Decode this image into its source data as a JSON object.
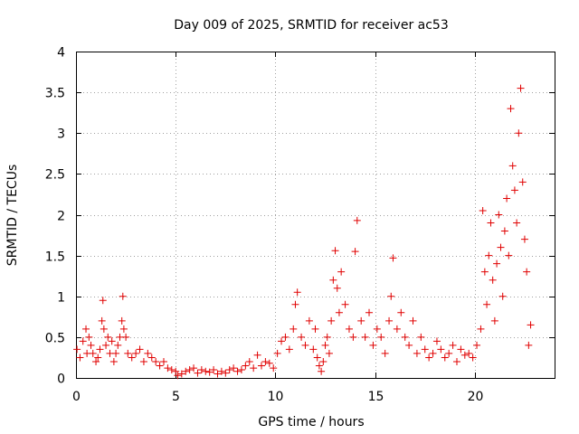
{
  "chart_data": {
    "type": "scatter",
    "title": "Day 009 of 2025, SRMTID for receiver ac53",
    "xlabel": "GPS time / hours",
    "ylabel": "SRMTID / TECUs",
    "xlim": [
      0,
      24
    ],
    "ylim": [
      0,
      4
    ],
    "xticks": [
      0,
      5,
      10,
      15,
      20
    ],
    "yticks": [
      0,
      0.5,
      1,
      1.5,
      2,
      2.5,
      3,
      3.5,
      4
    ],
    "xtick_labels": [
      "0",
      "5",
      "10",
      "15",
      "20"
    ],
    "ytick_labels": [
      "0",
      "0.5",
      "1",
      "1.5",
      "2",
      "2.5",
      "3",
      "3.5",
      "4"
    ],
    "grid": true,
    "marker": "+",
    "series": [
      {
        "name": "SRMTID",
        "color": "#e00000",
        "x": [
          0.05,
          0.2,
          0.35,
          0.5,
          0.55,
          0.65,
          0.75,
          0.85,
          1.0,
          1.1,
          1.2,
          1.3,
          1.35,
          1.4,
          1.5,
          1.6,
          1.7,
          1.8,
          1.9,
          2.0,
          2.1,
          2.2,
          2.3,
          2.35,
          2.4,
          2.5,
          2.6,
          2.8,
          3.0,
          3.2,
          3.4,
          3.6,
          3.8,
          4.0,
          4.2,
          4.4,
          4.6,
          4.8,
          5.0,
          5.1,
          5.3,
          5.5,
          5.7,
          5.9,
          6.1,
          6.3,
          6.5,
          6.7,
          6.9,
          7.1,
          7.3,
          7.5,
          7.7,
          7.9,
          8.1,
          8.3,
          8.5,
          8.7,
          8.9,
          9.1,
          9.3,
          9.5,
          9.7,
          9.9,
          10.1,
          10.3,
          10.5,
          10.7,
          10.9,
          11.0,
          11.1,
          11.3,
          11.5,
          11.7,
          11.9,
          12.0,
          12.1,
          12.2,
          12.3,
          12.4,
          12.5,
          12.6,
          12.7,
          12.8,
          12.9,
          13.0,
          13.1,
          13.2,
          13.3,
          13.5,
          13.7,
          13.9,
          14.0,
          14.1,
          14.3,
          14.5,
          14.7,
          14.9,
          15.1,
          15.3,
          15.5,
          15.7,
          15.8,
          15.9,
          16.1,
          16.3,
          16.5,
          16.7,
          16.9,
          17.1,
          17.3,
          17.5,
          17.7,
          17.9,
          18.1,
          18.3,
          18.5,
          18.7,
          18.9,
          19.1,
          19.3,
          19.5,
          19.7,
          19.9,
          20.1,
          20.3,
          20.4,
          20.5,
          20.6,
          20.7,
          20.8,
          20.9,
          21.0,
          21.1,
          21.2,
          21.3,
          21.4,
          21.5,
          21.6,
          21.7,
          21.8,
          21.9,
          22.0,
          22.1,
          22.2,
          22.3,
          22.4,
          22.5,
          22.6,
          22.7,
          22.8
        ],
        "y": [
          0.35,
          0.25,
          0.45,
          0.6,
          0.3,
          0.5,
          0.4,
          0.3,
          0.2,
          0.25,
          0.35,
          0.7,
          0.95,
          0.6,
          0.4,
          0.5,
          0.3,
          0.45,
          0.2,
          0.3,
          0.4,
          0.5,
          0.7,
          1.0,
          0.6,
          0.5,
          0.3,
          0.25,
          0.3,
          0.35,
          0.2,
          0.3,
          0.25,
          0.2,
          0.15,
          0.2,
          0.12,
          0.1,
          0.08,
          0.03,
          0.05,
          0.08,
          0.1,
          0.12,
          0.06,
          0.1,
          0.08,
          0.07,
          0.1,
          0.05,
          0.08,
          0.06,
          0.1,
          0.12,
          0.08,
          0.1,
          0.15,
          0.2,
          0.12,
          0.28,
          0.15,
          0.2,
          0.18,
          0.12,
          0.3,
          0.45,
          0.5,
          0.35,
          0.6,
          0.9,
          1.05,
          0.5,
          0.4,
          0.7,
          0.35,
          0.6,
          0.25,
          0.15,
          0.08,
          0.2,
          0.4,
          0.5,
          0.3,
          0.7,
          1.2,
          1.56,
          1.1,
          0.8,
          1.3,
          0.9,
          0.6,
          0.5,
          1.55,
          1.93,
          0.7,
          0.5,
          0.8,
          0.4,
          0.6,
          0.5,
          0.3,
          0.7,
          1.0,
          1.47,
          0.6,
          0.8,
          0.5,
          0.4,
          0.7,
          0.3,
          0.5,
          0.35,
          0.25,
          0.3,
          0.45,
          0.35,
          0.25,
          0.3,
          0.4,
          0.2,
          0.35,
          0.28,
          0.3,
          0.25,
          0.4,
          0.6,
          2.05,
          1.3,
          0.9,
          1.5,
          1.9,
          1.2,
          0.7,
          1.4,
          2.0,
          1.6,
          1.0,
          1.8,
          2.2,
          1.5,
          3.3,
          2.6,
          2.3,
          1.9,
          3.0,
          3.55,
          2.4,
          1.7,
          1.3,
          0.4,
          0.65
        ]
      }
    ]
  }
}
